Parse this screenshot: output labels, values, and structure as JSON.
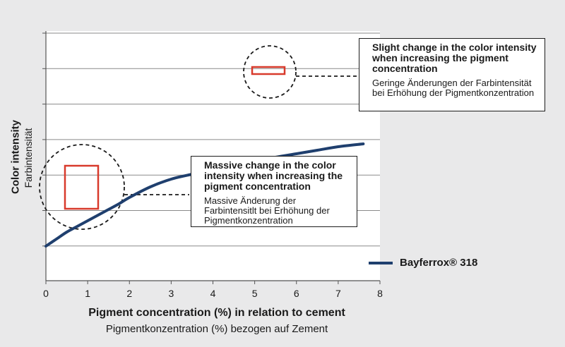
{
  "chart_data": {
    "type": "line",
    "xlabel": "Pigment concentration (%) in relation to cement",
    "xlabel_secondary": "Pigmentkonzentration (%) bezogen auf Zement",
    "ylabel": "Color intensity",
    "ylabel_secondary": "Farbintensität",
    "xlim": [
      0,
      8
    ],
    "x_ticks": [
      "0",
      "1",
      "2",
      "3",
      "4",
      "5",
      "6",
      "7",
      "8"
    ],
    "grid": "horizontal",
    "series": [
      {
        "name": "Bayferrox® 318",
        "color": "#1f3f6e",
        "x": [
          0,
          0.25,
          0.5,
          0.75,
          1.0,
          1.25,
          1.5,
          1.75,
          2.0,
          2.5,
          3.0,
          3.5,
          4.0,
          4.5,
          5.0,
          5.5,
          6.0,
          6.5,
          7.0,
          7.6
        ],
        "y": [
          0.0,
          0.1,
          0.2,
          0.28,
          0.36,
          0.44,
          0.52,
          0.6,
          0.69,
          0.84,
          0.95,
          1.02,
          1.08,
          1.14,
          1.2,
          1.26,
          1.31,
          1.36,
          1.41,
          1.45
        ]
      }
    ],
    "annotations": [
      {
        "id": "massive",
        "text_en": "Massive change in the color intensity when increasing the pigment concentration",
        "text_de": "Massive Änderung der Farbintensitlt bei Erhöhung der Pigmentkonzentration"
      },
      {
        "id": "slight",
        "text_en": "Slight change in the color intensity when increasing the pigment concentration",
        "text_de": "Geringe Änderungen der Farbintensität bei Erhöhung der Pigmentkonzentration"
      }
    ]
  },
  "callouts": {
    "top": {
      "en": "Slight change in the color intensity when increasing the pigment concentration",
      "de": "Geringe Änderungen der Farbintensität bei Erhöhung der Pigmentkonzentration"
    },
    "mid": {
      "en": "Massive change in the color intensity when increasing the pigment concentration",
      "de": "Massive Änderung der Farbintensitlt bei Erhöhung der Pigmentkonzentration"
    }
  },
  "legend": {
    "label": "Bayferrox® 318",
    "color": "#1f3f6e"
  },
  "colors": {
    "plot_bg": "#ffffff",
    "page_bg": "#e9e9ea",
    "highlight": "#d83a2c",
    "curve": "#1f3f6e"
  }
}
